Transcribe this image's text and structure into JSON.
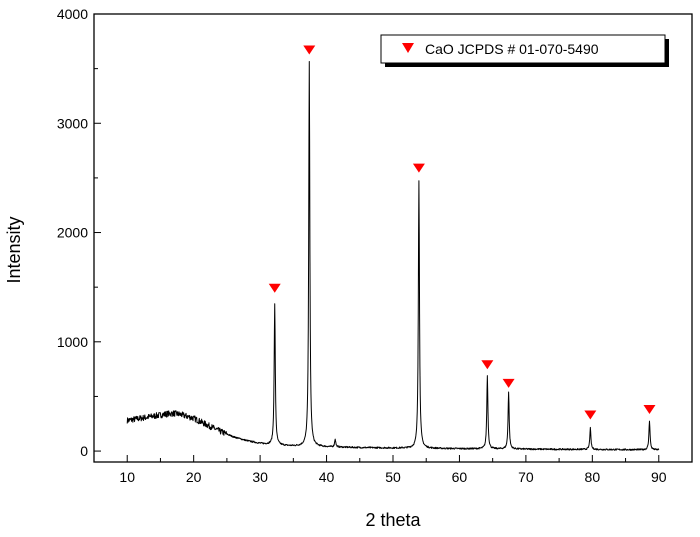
{
  "chart_data": {
    "type": "line",
    "title": "",
    "xlabel": "2 theta",
    "ylabel": "Intensity",
    "xlim": [
      5,
      95
    ],
    "ylim": [
      -100,
      4000
    ],
    "x_ticks": [
      10,
      20,
      30,
      40,
      50,
      60,
      70,
      80,
      90
    ],
    "y_ticks": [
      0,
      1000,
      2000,
      3000,
      4000
    ],
    "grid": false,
    "legend": {
      "placement": "top-right",
      "entries": [
        {
          "label": "CaO JCPDS # 01-070-5490",
          "marker": "triangle-down",
          "color": "#ff0000"
        }
      ]
    },
    "series": [
      {
        "type": "line",
        "color": "#000000",
        "x_range": [
          10,
          90
        ],
        "baseline": [
          [
            10,
            280
          ],
          [
            12,
            300
          ],
          [
            14,
            320
          ],
          [
            16,
            340
          ],
          [
            17,
            345
          ],
          [
            18,
            335
          ],
          [
            20,
            300
          ],
          [
            22,
            240
          ],
          [
            24,
            180
          ],
          [
            26,
            130
          ],
          [
            28,
            95
          ],
          [
            30,
            70
          ],
          [
            32,
            55
          ],
          [
            35,
            45
          ],
          [
            40,
            38
          ],
          [
            45,
            32
          ],
          [
            50,
            28
          ],
          [
            55,
            25
          ],
          [
            60,
            22
          ],
          [
            65,
            20
          ],
          [
            70,
            18
          ],
          [
            75,
            16
          ],
          [
            80,
            15
          ],
          [
            85,
            13
          ],
          [
            90,
            12
          ]
        ],
        "peaks": [
          {
            "x": 32.2,
            "y": 1350
          },
          {
            "x": 37.4,
            "y": 3570
          },
          {
            "x": 41.3,
            "y": 110
          },
          {
            "x": 53.9,
            "y": 2480
          },
          {
            "x": 64.2,
            "y": 690
          },
          {
            "x": 67.4,
            "y": 540
          },
          {
            "x": 79.7,
            "y": 210
          },
          {
            "x": 88.6,
            "y": 280
          }
        ]
      },
      {
        "type": "scatter",
        "name": "CaO JCPDS # 01-070-5490",
        "marker": "triangle-down",
        "color": "#ff0000",
        "points": [
          {
            "x": 32.2,
            "y": 1490
          },
          {
            "x": 37.4,
            "y": 3670
          },
          {
            "x": 53.9,
            "y": 2590
          },
          {
            "x": 64.2,
            "y": 790
          },
          {
            "x": 67.4,
            "y": 620
          },
          {
            "x": 79.7,
            "y": 330
          },
          {
            "x": 88.6,
            "y": 380
          }
        ]
      }
    ]
  }
}
